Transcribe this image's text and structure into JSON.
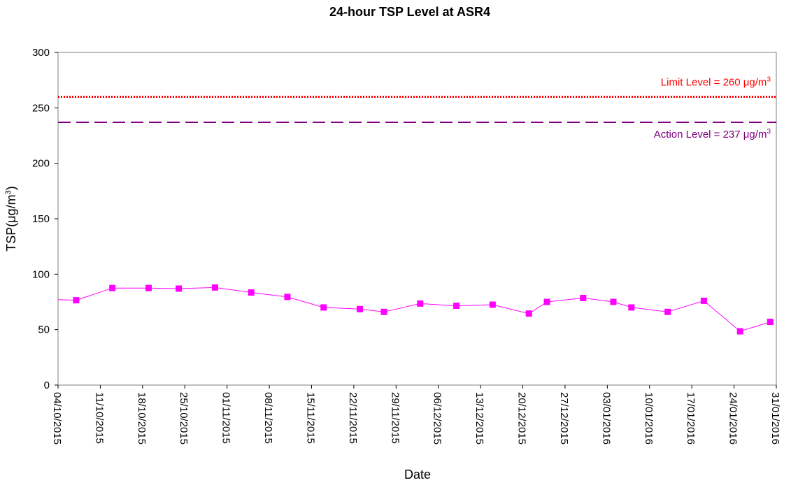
{
  "chart_data": {
    "type": "line",
    "title": "24-hour TSP Level at ASR4",
    "xlabel": "Date",
    "ylabel": "TSP(μg/m",
    "ylabel_sup": "3",
    "ylabel_suffix": ")",
    "ylim": [
      0,
      300
    ],
    "yticks": [
      0,
      50,
      100,
      150,
      200,
      250,
      300
    ],
    "xlim": [
      "2015-10-04",
      "2016-01-31"
    ],
    "xticks": [
      "04/10/2015",
      "11/10/2015",
      "18/10/2015",
      "25/10/2015",
      "01/11/2015",
      "08/11/2015",
      "15/11/2015",
      "22/11/2015",
      "29/11/2015",
      "06/12/2015",
      "13/12/2015",
      "20/12/2015",
      "27/12/2015",
      "03/01/2016",
      "10/01/2016",
      "17/01/2016",
      "24/01/2016",
      "31/01/2016"
    ],
    "grid": false,
    "legend": "none",
    "series": [
      {
        "color": "#ff00ff",
        "x": [
          "2015-10-03",
          "2015-10-07",
          "2015-10-13",
          "2015-10-19",
          "2015-10-24",
          "2015-10-30",
          "2015-11-05",
          "2015-11-11",
          "2015-11-17",
          "2015-11-23",
          "2015-11-27",
          "2015-12-03",
          "2015-12-09",
          "2015-12-15",
          "2015-12-21",
          "2015-12-24",
          "2015-12-30",
          "2016-01-04",
          "2016-01-07",
          "2016-01-13",
          "2016-01-19",
          "2016-01-25",
          "2016-01-30"
        ],
        "y": [
          77,
          76.5,
          87.5,
          87.5,
          87,
          88,
          83.5,
          79.5,
          70,
          68.5,
          66,
          73.5,
          71.5,
          72.5,
          64.5,
          75,
          78.5,
          75,
          70,
          66,
          76,
          48.5,
          57
        ]
      }
    ],
    "reference_lines": [
      {
        "label": "Limit Level = 260 μg/m",
        "label_sup": "3",
        "value": 260,
        "color": "#ff0000",
        "style": "dotted"
      },
      {
        "label": "Action Level = 237 μg/m",
        "label_sup": "3",
        "value": 237,
        "color": "#800080",
        "style": "dashed"
      }
    ]
  }
}
